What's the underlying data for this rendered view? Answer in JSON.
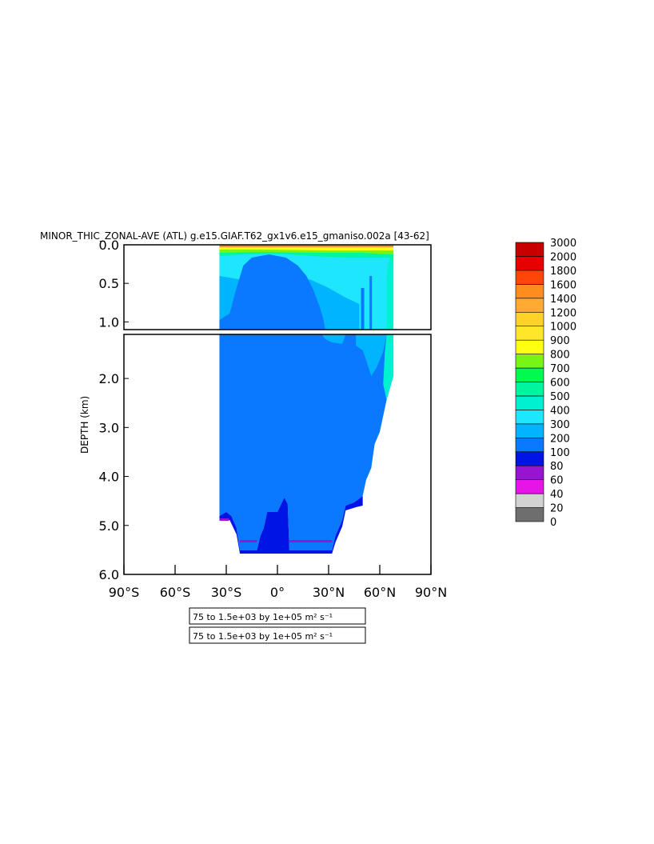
{
  "chart_data": {
    "type": "heatmap",
    "title": "MINOR_THIC_ZONAL-AVE (ATL) g.e15.GIAF.T62_gx1v6.e15_gmaniso.002a [43-62]",
    "ylabel": "DEPTH (km)",
    "xlabel": "",
    "x_ticks": [
      "90°S",
      "60°S",
      "30°S",
      "0°",
      "30°N",
      "60°N",
      "90°N"
    ],
    "x_range": [
      -90,
      90
    ],
    "y_ticks_upper": [
      "0.0",
      "0.5",
      "1.0"
    ],
    "y_ticks_lower": [
      "2.0",
      "3.0",
      "4.0",
      "5.0",
      "6.0"
    ],
    "y_range_upper_km": [
      0.0,
      1.1
    ],
    "y_range_lower_km": [
      1.1,
      6.0
    ],
    "units": "m² s⁻¹",
    "contour_info": [
      "75 to 1.5e+03 by 1e+05 m² s⁻¹",
      "75 to 1.5e+03 by 1e+05 m² s⁻¹"
    ],
    "colorbar": {
      "levels": [
        "0",
        "20",
        "40",
        "60",
        "80",
        "100",
        "200",
        "300",
        "400",
        "500",
        "600",
        "700",
        "800",
        "900",
        "1000",
        "1200",
        "1400",
        "1600",
        "1800",
        "2000",
        "3000"
      ],
      "colors": [
        "#6e6e6e",
        "#d2d2d2",
        "#e614e6",
        "#9614d2",
        "#0014e6",
        "#0a78ff",
        "#00b4ff",
        "#1ee6ff",
        "#00f0d2",
        "#00f5a0",
        "#00fa50",
        "#78f514",
        "#ffff14",
        "#ffe628",
        "#ffd228",
        "#ffaa32",
        "#ff8c1e",
        "#ff460a",
        "#e60000",
        "#c80000"
      ]
    },
    "data_extent": {
      "lat_min": -34,
      "lat_max": 70,
      "main_field_value_range": [
        100,
        200
      ],
      "surface_value_range": [
        500,
        1400
      ]
    },
    "grid": false
  }
}
